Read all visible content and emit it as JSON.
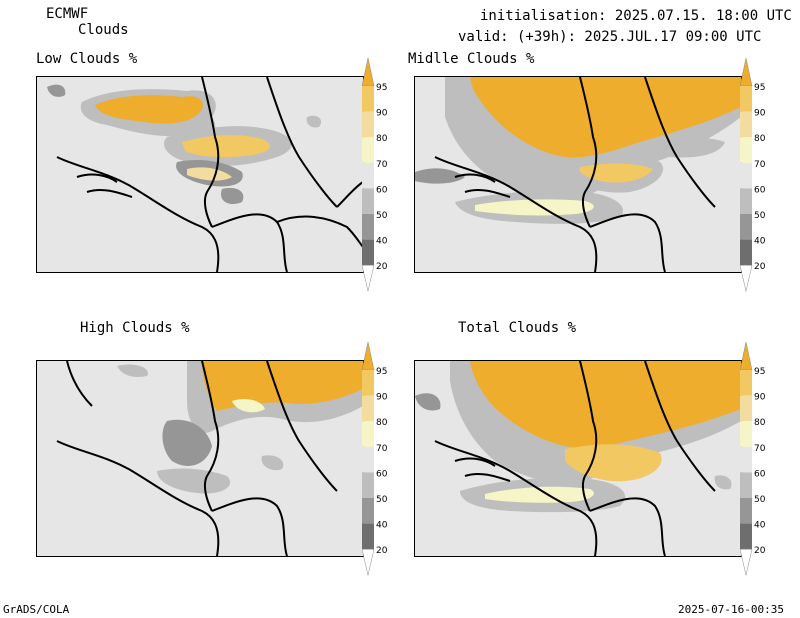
{
  "header": {
    "model": "ECMWF",
    "product": "Clouds",
    "init": "initialisation: 2025.07.15. 18:00 UTC",
    "valid": "valid: (+39h): 2025.JUL.17 09:00 UTC"
  },
  "panels": [
    {
      "title": "Low Clouds %"
    },
    {
      "title": "Midlle Clouds %"
    },
    {
      "title": "High Clouds %"
    },
    {
      "title": "Total Clouds %"
    }
  ],
  "colorbar": {
    "levels": [
      "95",
      "90",
      "80",
      "70",
      "60",
      "50",
      "40",
      "20"
    ],
    "colors": [
      "#eead2d",
      "#f2c863",
      "#f2dca0",
      "#f5f5c8",
      "#e6e6e6",
      "#bebebe",
      "#969696",
      "#6e6e6e",
      "#4b4b4b"
    ]
  },
  "footer": {
    "left": "GrADS/COLA",
    "right": "2025-07-16-00:35"
  }
}
